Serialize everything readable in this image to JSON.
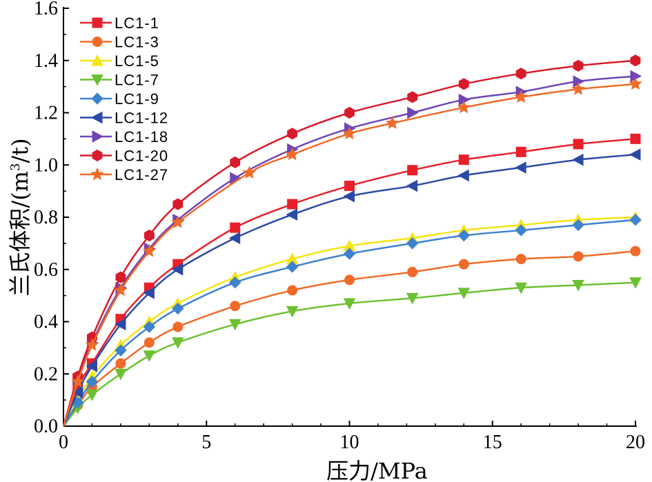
{
  "chart_data": {
    "type": "line",
    "title": "",
    "xlabel": "压力/MPa",
    "ylabel_main": "兰氏体积/(m",
    "ylabel_sup": "3",
    "ylabel_tail": "/t)",
    "xlim": [
      0,
      20
    ],
    "ylim": [
      0,
      1.6
    ],
    "xticks": [
      0,
      5,
      10,
      15,
      20
    ],
    "yticks": [
      0,
      0.2,
      0.4,
      0.6,
      0.8,
      1.0,
      1.2,
      1.4,
      1.6
    ],
    "xtick_labels": [
      "0",
      "5",
      "10",
      "15",
      "20"
    ],
    "ytick_labels": [
      "0.0",
      "0.2",
      "0.4",
      "0.6",
      "0.8",
      "1.0",
      "1.2",
      "1.4",
      "1.6"
    ],
    "grid": false,
    "legend_position": "top-left",
    "series": [
      {
        "name": "LC1-1",
        "color": "#e8202a",
        "marker": "square",
        "x": [
          0,
          0.5,
          1,
          2,
          3,
          4,
          6,
          8,
          10,
          12.2,
          14,
          16,
          18,
          20
        ],
        "y": [
          0,
          0.15,
          0.24,
          0.41,
          0.53,
          0.62,
          0.76,
          0.85,
          0.92,
          0.98,
          1.02,
          1.05,
          1.08,
          1.1
        ]
      },
      {
        "name": "LC1-3",
        "color": "#f06a28",
        "marker": "circle",
        "x": [
          0,
          0.5,
          1,
          2,
          3,
          4,
          6,
          8,
          10,
          12.2,
          14,
          16,
          18,
          20
        ],
        "y": [
          0,
          0.08,
          0.15,
          0.24,
          0.32,
          0.38,
          0.46,
          0.52,
          0.56,
          0.59,
          0.62,
          0.64,
          0.65,
          0.67
        ]
      },
      {
        "name": "LC1-5",
        "color": "#f4e411",
        "marker": "triangle-up",
        "x": [
          0,
          0.5,
          1,
          2,
          3,
          4,
          6,
          8,
          10,
          12.2,
          14,
          16,
          18,
          20
        ],
        "y": [
          0,
          0.1,
          0.19,
          0.31,
          0.4,
          0.47,
          0.57,
          0.64,
          0.69,
          0.72,
          0.75,
          0.77,
          0.79,
          0.8
        ]
      },
      {
        "name": "LC1-7",
        "color": "#6cc032",
        "marker": "triangle-down",
        "x": [
          0,
          0.5,
          1,
          2,
          3,
          4,
          6,
          8,
          10,
          12.2,
          14,
          16,
          18,
          20
        ],
        "y": [
          0,
          0.07,
          0.12,
          0.2,
          0.27,
          0.32,
          0.39,
          0.44,
          0.47,
          0.49,
          0.51,
          0.53,
          0.54,
          0.55
        ]
      },
      {
        "name": "LC1-9",
        "color": "#3d82cf",
        "marker": "diamond",
        "x": [
          0,
          0.5,
          1,
          2,
          3,
          4,
          6,
          8,
          10,
          12.2,
          14,
          16,
          18,
          20
        ],
        "y": [
          0,
          0.09,
          0.17,
          0.29,
          0.38,
          0.45,
          0.55,
          0.61,
          0.66,
          0.7,
          0.73,
          0.75,
          0.77,
          0.79
        ]
      },
      {
        "name": "LC1-12",
        "color": "#2b4aa6",
        "marker": "triangle-left",
        "x": [
          0,
          0.5,
          1,
          2,
          3,
          4,
          6,
          8,
          10,
          12.2,
          14,
          16,
          18,
          20
        ],
        "y": [
          0,
          0.13,
          0.23,
          0.39,
          0.51,
          0.6,
          0.72,
          0.81,
          0.88,
          0.92,
          0.96,
          0.99,
          1.02,
          1.04
        ]
      },
      {
        "name": "LC1-18",
        "color": "#7045b5",
        "marker": "triangle-right",
        "x": [
          0,
          0.5,
          1,
          2,
          3,
          4,
          6,
          8,
          10,
          12.2,
          14,
          16,
          18,
          20
        ],
        "y": [
          0,
          0.18,
          0.32,
          0.53,
          0.68,
          0.79,
          0.95,
          1.06,
          1.14,
          1.2,
          1.25,
          1.28,
          1.32,
          1.34
        ]
      },
      {
        "name": "LC1-20",
        "color": "#d81b2a",
        "marker": "hexagon",
        "x": [
          0,
          0.5,
          1,
          2,
          3,
          4,
          6,
          8,
          10,
          12.2,
          14,
          16,
          18,
          20
        ],
        "y": [
          0,
          0.19,
          0.34,
          0.57,
          0.73,
          0.85,
          1.01,
          1.12,
          1.2,
          1.26,
          1.31,
          1.35,
          1.38,
          1.4
        ]
      },
      {
        "name": "LC1-27",
        "color": "#f06a28",
        "marker": "star",
        "x": [
          0,
          0.5,
          1,
          2,
          3,
          4,
          6.5,
          8,
          10,
          11.5,
          14,
          16,
          18,
          20
        ],
        "y": [
          0,
          0.17,
          0.31,
          0.52,
          0.67,
          0.78,
          0.97,
          1.04,
          1.12,
          1.16,
          1.22,
          1.26,
          1.29,
          1.31
        ]
      }
    ]
  }
}
